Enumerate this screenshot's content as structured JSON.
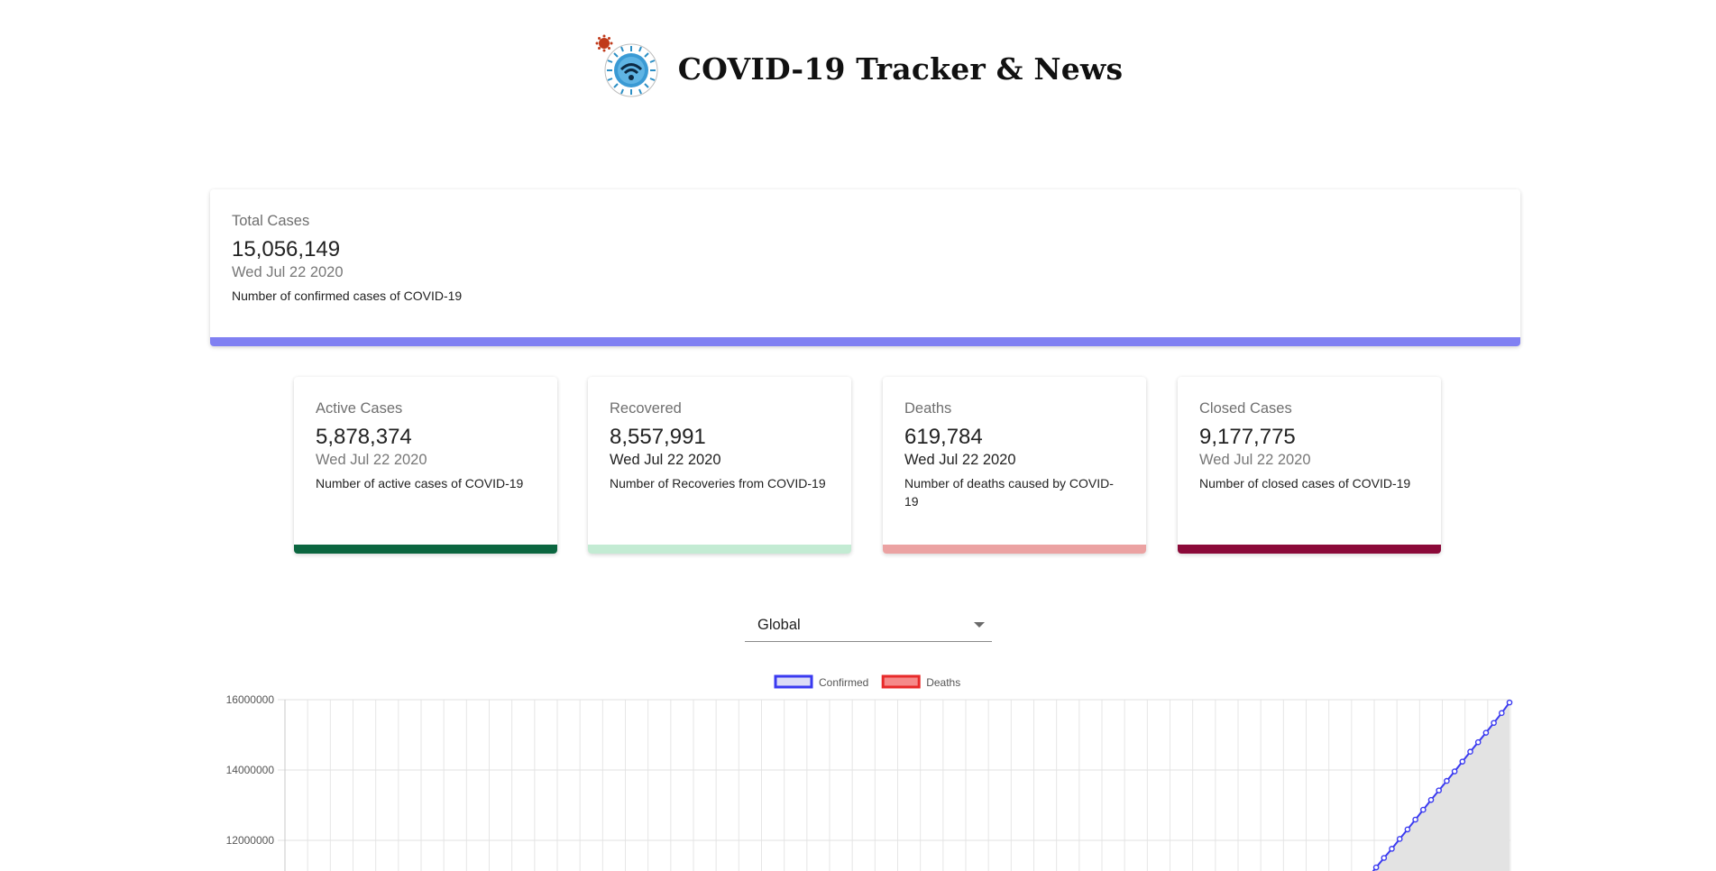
{
  "header": {
    "title": "COVID-19 Tracker & News",
    "logo_icon": "covid-virus-globe-logo-icon"
  },
  "total_card": {
    "label": "Total Cases",
    "value": "15,056,149",
    "date": "Wed Jul 22 2020",
    "description": "Number of confirmed cases of COVID-19",
    "bar_color": "#8080f2"
  },
  "stat_cards": [
    {
      "label": "Active Cases",
      "value": "5,878,374",
      "date": "Wed Jul 22 2020",
      "description": "Number of active cases of COVID-19",
      "bar_color": "#0b6640"
    },
    {
      "label": "Recovered",
      "value": "8,557,991",
      "date": "Wed Jul 22 2020",
      "description": "Number of Recoveries from COVID-19",
      "bar_color": "#c3ebd3"
    },
    {
      "label": "Deaths",
      "value": "619,784",
      "date": "Wed Jul 22 2020",
      "description": "Number of deaths caused by COVID-19",
      "bar_color": "#eba2a2"
    },
    {
      "label": "Closed Cases",
      "value": "9,177,775",
      "date": "Wed Jul 22 2020",
      "description": "Number of closed cases of COVID-19",
      "bar_color": "#8b0a39"
    }
  ],
  "region_select": {
    "value": "Global",
    "icon": "chevron-down-icon"
  },
  "chart_data": {
    "type": "line",
    "series": [
      {
        "name": "Confirmed",
        "color": "#3a3af0",
        "fill": "#e3e3e3",
        "values": [
          10950000,
          11230000,
          11500000,
          11760000,
          12040000,
          12310000,
          12590000,
          12870000,
          13150000,
          13420000,
          13690000,
          13960000,
          14240000,
          14520000,
          14790000,
          15060000,
          15340000,
          15620000,
          15920000
        ]
      },
      {
        "name": "Deaths",
        "color": "#e82a2a",
        "fill": "#f58a8a",
        "values": []
      }
    ],
    "yticks": [
      16000000,
      14000000,
      12000000
    ],
    "ylim": [
      10000000,
      16000000
    ],
    "grid": true,
    "legend_position": "top"
  }
}
